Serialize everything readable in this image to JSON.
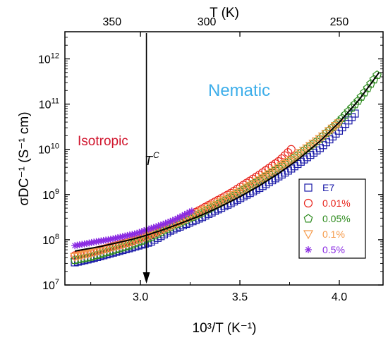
{
  "chart_data": {
    "type": "scatter",
    "xlabel": "10³/T (K⁻¹)",
    "ylabel": "σDC⁻¹ (S⁻¹ cm)",
    "top_axis_label": "T (K)",
    "xlim": [
      2.62,
      4.22
    ],
    "ylim_log10": [
      7,
      12.6
    ],
    "y_scale": "log",
    "x_ticks": [
      3.0,
      3.5,
      4.0
    ],
    "x_tick_labels": [
      "3.0",
      "3.5",
      "4.0"
    ],
    "y_ticks": [
      7,
      8,
      9,
      10,
      11,
      12
    ],
    "top_ticks": [
      350,
      300,
      250
    ],
    "top_tick_labels": [
      "350",
      "300",
      "250"
    ],
    "annotations": {
      "nematic": "Nematic",
      "isotropic": "Isotropic",
      "tc_base": "T",
      "tc_sup": "C",
      "tc_x": 3.03
    },
    "colors": {
      "nematic": "#3daeea",
      "isotropic": "#d0142c",
      "E7": "#1a1aa8",
      "c001": "#e8241c",
      "c005": "#2e8b1e",
      "c01": "#f59a4a",
      "c05": "#8a2be2",
      "fit": "#000000"
    },
    "fit_line": {
      "x": [
        2.67,
        2.8,
        2.95,
        3.03,
        3.1,
        3.2,
        3.3,
        3.4,
        3.5,
        3.6,
        3.7,
        3.8,
        3.9,
        4.0,
        4.1,
        4.2
      ],
      "log10_y": [
        7.75,
        7.85,
        8.0,
        8.1,
        8.2,
        8.36,
        8.53,
        8.73,
        8.95,
        9.2,
        9.48,
        9.8,
        10.17,
        10.6,
        11.1,
        11.7
      ]
    },
    "legend": {
      "position": "lower-right",
      "entries": [
        {
          "label": "E7",
          "marker": "square",
          "color": "#1a1aa8"
        },
        {
          "label": "0.01%",
          "marker": "circle",
          "color": "#e8241c"
        },
        {
          "label": "0.05%",
          "marker": "pentagon",
          "color": "#2e8b1e"
        },
        {
          "label": "0.1%",
          "marker": "triangle-down",
          "color": "#f59a4a"
        },
        {
          "label": "0.5%",
          "marker": "asterisk",
          "color": "#8a2be2"
        }
      ]
    },
    "series": [
      {
        "name": "E7",
        "marker": "square",
        "color": "#1a1aa8",
        "x": [
          2.67,
          2.75,
          2.85,
          2.95,
          3.05,
          3.15,
          3.3,
          3.45,
          3.6,
          3.75,
          3.9,
          4.0,
          4.08
        ],
        "log10_y": [
          7.5,
          7.58,
          7.7,
          7.82,
          7.95,
          8.2,
          8.48,
          8.8,
          9.15,
          9.55,
          10.02,
          10.42,
          10.8
        ]
      },
      {
        "name": "0.01%",
        "marker": "circle",
        "color": "#e8241c",
        "x": [
          2.67,
          2.75,
          2.85,
          2.95,
          3.05,
          3.15,
          3.3,
          3.45,
          3.6,
          3.7,
          3.77
        ],
        "log10_y": [
          7.65,
          7.72,
          7.84,
          7.96,
          8.12,
          8.32,
          8.66,
          9.02,
          9.44,
          9.75,
          10.05
        ]
      },
      {
        "name": "0.05%",
        "marker": "pentagon",
        "color": "#2e8b1e",
        "x": [
          2.67,
          2.75,
          2.85,
          2.95,
          3.05,
          3.15,
          3.3,
          3.45,
          3.6,
          3.75,
          3.9,
          4.0,
          4.1,
          4.2
        ],
        "log10_y": [
          7.55,
          7.62,
          7.75,
          7.88,
          8.05,
          8.28,
          8.58,
          8.93,
          9.32,
          9.74,
          10.22,
          10.62,
          11.1,
          11.7
        ]
      },
      {
        "name": "0.1%",
        "marker": "triangle-down",
        "color": "#f59a4a",
        "x": [
          2.67,
          2.75,
          2.85,
          2.95,
          3.05,
          3.15,
          3.3,
          3.45,
          3.6,
          3.75,
          3.9,
          4.0
        ],
        "log10_y": [
          7.62,
          7.7,
          7.82,
          7.94,
          8.1,
          8.3,
          8.6,
          8.94,
          9.32,
          9.74,
          10.22,
          10.58
        ]
      },
      {
        "name": "0.5%",
        "marker": "asterisk",
        "color": "#8a2be2",
        "x": [
          2.67,
          2.72,
          2.78,
          2.85,
          2.92,
          2.98,
          3.03,
          3.08,
          3.13,
          3.18,
          3.22,
          3.26
        ],
        "log10_y": [
          7.87,
          7.91,
          7.96,
          8.01,
          8.08,
          8.14,
          8.22,
          8.29,
          8.37,
          8.46,
          8.55,
          8.64
        ]
      }
    ]
  }
}
